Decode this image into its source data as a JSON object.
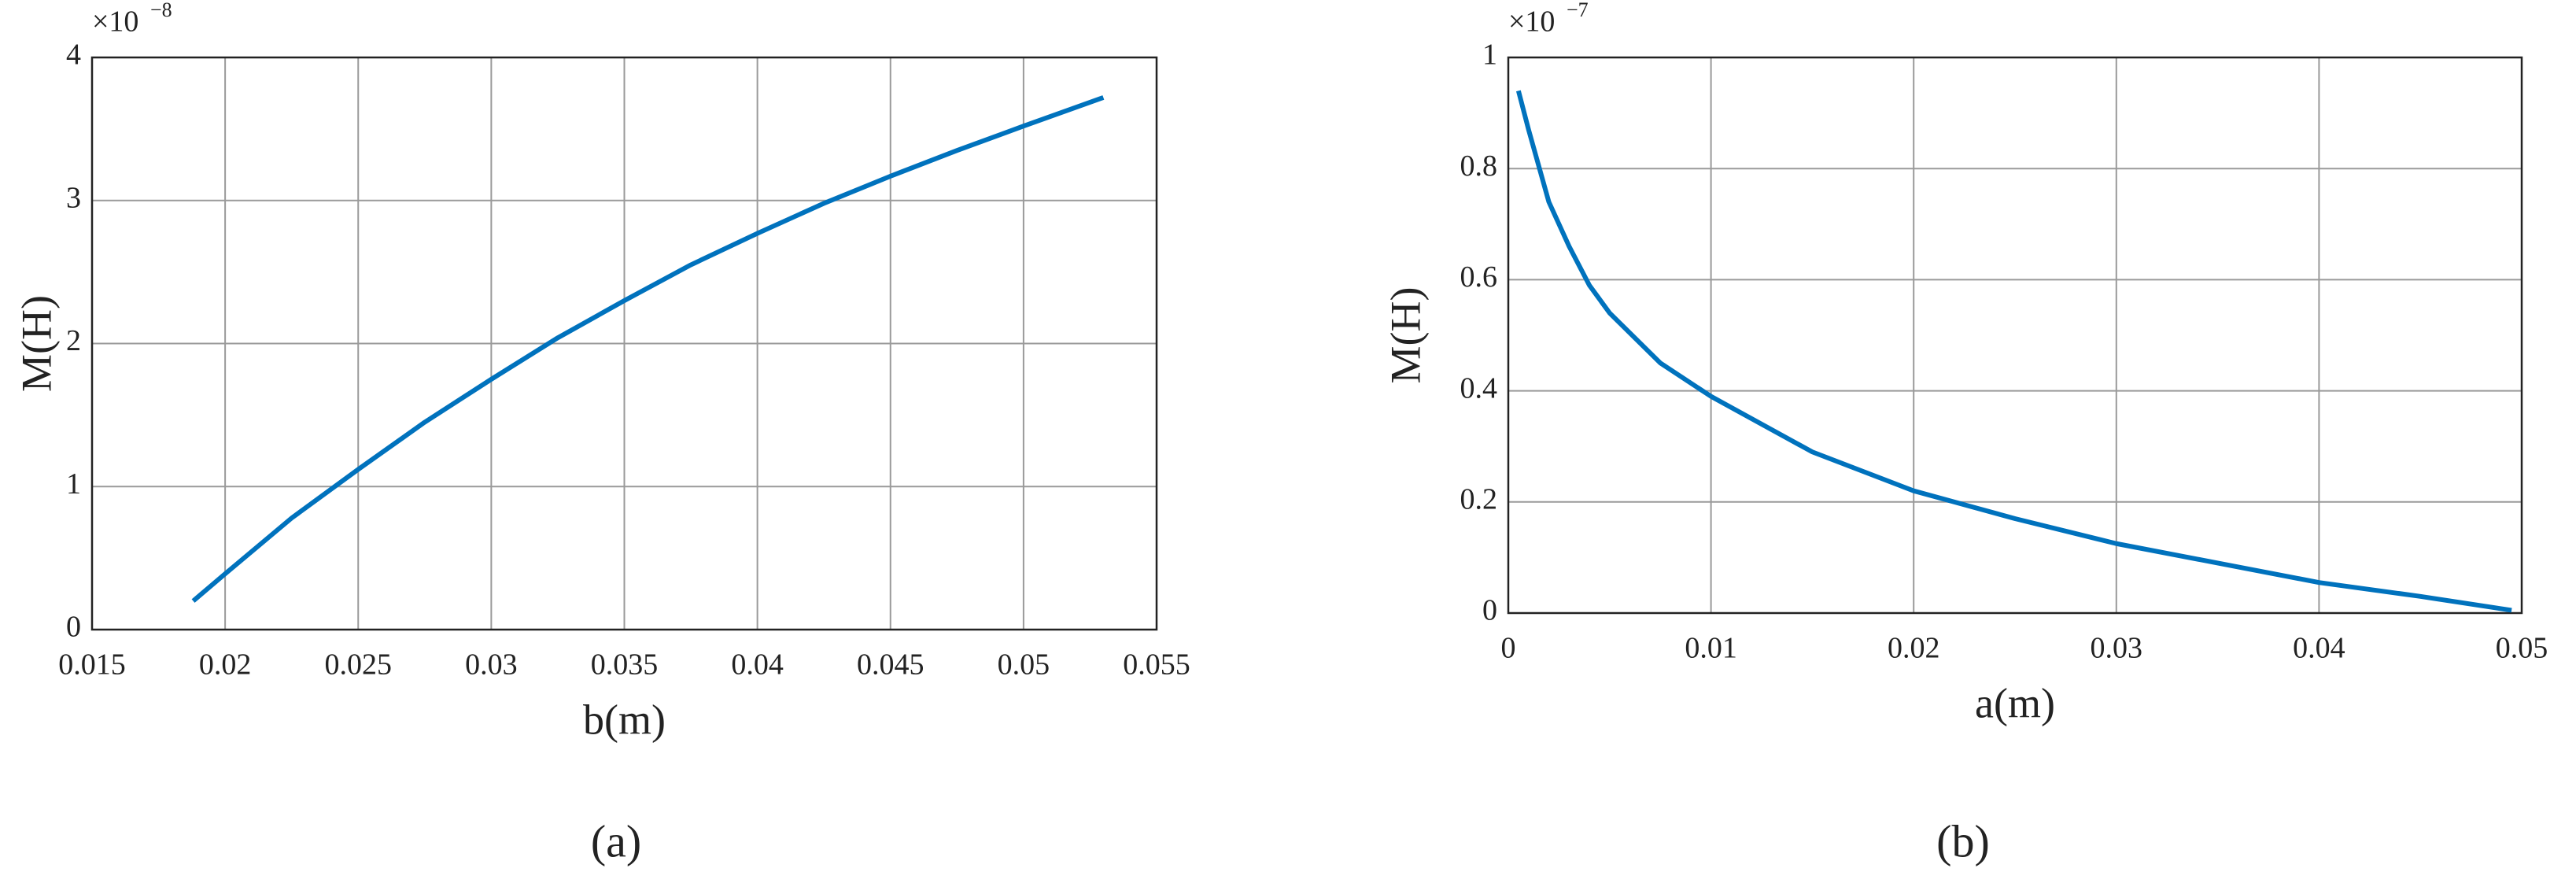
{
  "chart_data": [
    {
      "type": "line",
      "x_label": "b(m)",
      "y_label": "M(H)",
      "panel_label": "(a)",
      "y_multiplier": "×10",
      "y_exponent": "−8",
      "x": [
        0.0188,
        0.02,
        0.0225,
        0.025,
        0.0275,
        0.03,
        0.0325,
        0.035,
        0.0375,
        0.04,
        0.0425,
        0.045,
        0.0475,
        0.05,
        0.053
      ],
      "series": [
        {
          "color": "#0072bd",
          "values": [
            0.2,
            0.39,
            0.78,
            1.12,
            1.45,
            1.75,
            2.04,
            2.3,
            2.55,
            2.77,
            2.98,
            3.17,
            3.35,
            3.52,
            3.72
          ]
        }
      ],
      "xlim": [
        0.015,
        0.055
      ],
      "xticks": [
        0.015,
        0.02,
        0.025,
        0.03,
        0.035,
        0.04,
        0.045,
        0.05,
        0.055
      ],
      "ylim": [
        0,
        4
      ],
      "yticks": [
        0,
        1,
        2,
        3,
        4
      ],
      "grid": true
    },
    {
      "type": "line",
      "x_label": "a(m)",
      "y_label": "M(H)",
      "panel_label": "(b)",
      "y_multiplier": "×10",
      "y_exponent": "−7",
      "x": [
        0.0005,
        0.001,
        0.002,
        0.003,
        0.004,
        0.005,
        0.0075,
        0.01,
        0.015,
        0.02,
        0.025,
        0.03,
        0.035,
        0.04,
        0.045,
        0.0495
      ],
      "series": [
        {
          "color": "#0072bd",
          "values": [
            0.94,
            0.87,
            0.74,
            0.66,
            0.59,
            0.54,
            0.45,
            0.39,
            0.29,
            0.22,
            0.17,
            0.125,
            0.09,
            0.055,
            0.03,
            0.005
          ]
        }
      ],
      "xlim": [
        0,
        0.05
      ],
      "xticks": [
        0,
        0.01,
        0.02,
        0.03,
        0.04,
        0.05
      ],
      "ylim": [
        0,
        1
      ],
      "yticks": [
        0,
        0.2,
        0.4,
        0.6,
        0.8,
        1
      ],
      "grid": true
    }
  ]
}
